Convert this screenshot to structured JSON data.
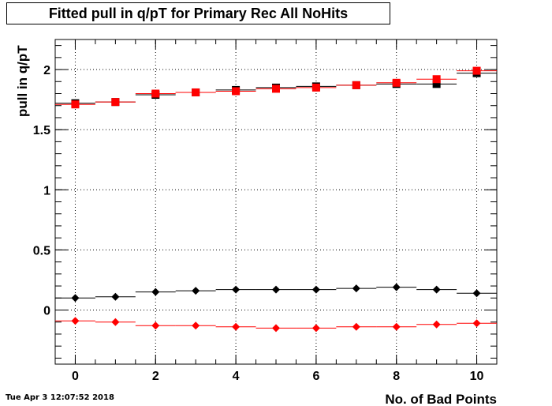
{
  "title": "Fitted pull in q/pT  for Primary Rec All NoHits",
  "timestamp": "Tue Apr  3 12:07:52 2018",
  "chart_data": {
    "type": "scatter",
    "xlabel": "No. of Bad Points",
    "ylabel": "pull in q/pT",
    "xlim": [
      -0.5,
      10.5
    ],
    "ylim": [
      -0.45,
      2.25
    ],
    "grid": true,
    "x_ticks": [
      "0",
      "2",
      "4",
      "6",
      "8",
      "10"
    ],
    "y_ticks": [
      "0",
      "0.5",
      "1",
      "1.5",
      "2"
    ],
    "x": [
      0,
      1,
      2,
      3,
      4,
      5,
      6,
      7,
      8,
      9,
      10
    ],
    "series": [
      {
        "color": "#000000",
        "marker": "square",
        "values": [
          1.72,
          1.73,
          1.79,
          1.81,
          1.83,
          1.85,
          1.86,
          1.87,
          1.88,
          1.88,
          1.97
        ]
      },
      {
        "color": "#ff0000",
        "marker": "square",
        "values": [
          1.71,
          1.73,
          1.8,
          1.81,
          1.82,
          1.84,
          1.85,
          1.87,
          1.89,
          1.92,
          1.99
        ]
      },
      {
        "color": "#000000",
        "marker": "diamond",
        "values": [
          0.1,
          0.11,
          0.15,
          0.16,
          0.17,
          0.17,
          0.17,
          0.18,
          0.19,
          0.17,
          0.14
        ]
      },
      {
        "color": "#ff0000",
        "marker": "diamond",
        "values": [
          -0.09,
          -0.1,
          -0.13,
          -0.13,
          -0.14,
          -0.15,
          -0.15,
          -0.14,
          -0.14,
          -0.12,
          -0.11
        ]
      }
    ]
  }
}
